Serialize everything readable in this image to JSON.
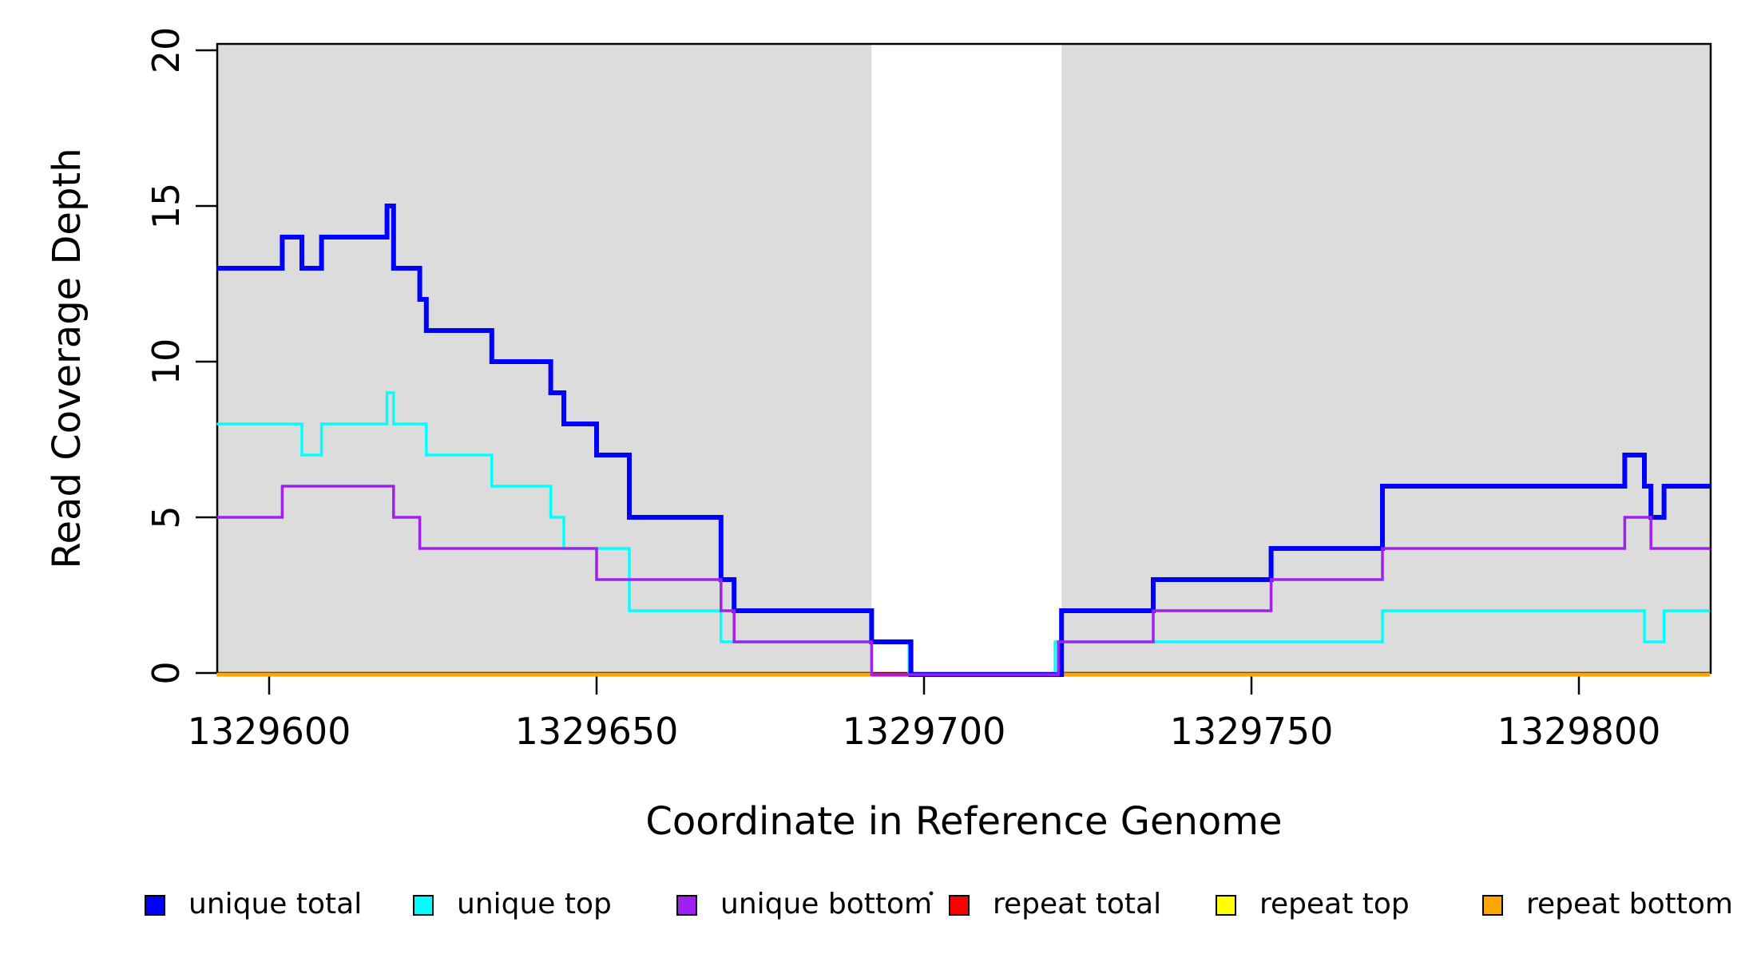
{
  "figure": {
    "background": "#ffffff",
    "plot_background": "#ffffff",
    "shade_color": "#DCDCDC",
    "box_color": "#000000"
  },
  "titles": {
    "x_axis": "Coordinate in Reference Genome",
    "y_axis": "Read Coverage Depth"
  },
  "legend": {
    "items": [
      {
        "label": "unique total",
        "color": "#0000FF"
      },
      {
        "label": "unique top",
        "color": "#00FFFF"
      },
      {
        "label": "unique bottom",
        "color": "#A020F0"
      },
      {
        "label": "repeat total",
        "color": "#FF0000"
      },
      {
        "label": "repeat top",
        "color": "#FFFF00"
      },
      {
        "label": "repeat bottom",
        "color": "#FFA500"
      }
    ]
  },
  "chart_data": {
    "type": "line",
    "step": true,
    "title": "",
    "xlabel": "Coordinate in Reference Genome",
    "ylabel": "Read Coverage Depth",
    "xlim": [
      1329592,
      1329820
    ],
    "ylim": [
      0,
      20
    ],
    "grid": false,
    "legend_position": "bottom",
    "x_ticks": [
      {
        "coord": 1329600,
        "label": "1329600"
      },
      {
        "coord": 1329650,
        "label": "1329650"
      },
      {
        "coord": 1329700,
        "label": "1329700"
      },
      {
        "coord": 1329750,
        "label": "1329750"
      },
      {
        "coord": 1329800,
        "label": "1329800"
      }
    ],
    "y_ticks": [
      {
        "value": 0,
        "label": "0"
      },
      {
        "value": 5,
        "label": "5"
      },
      {
        "value": 10,
        "label": "10"
      },
      {
        "value": 15,
        "label": "15"
      },
      {
        "value": 20,
        "label": "20"
      }
    ],
    "shaded_regions": [
      {
        "from": 1329592,
        "to": 1329692
      },
      {
        "from": 1329721,
        "to": 1329820
      }
    ],
    "series": [
      {
        "name": "repeat total",
        "color": "#FF0000",
        "width": 5,
        "segments": [
          {
            "points": [
              [
                1329592,
                0
              ]
            ],
            "end": 1329820
          }
        ]
      },
      {
        "name": "repeat top",
        "color": "#FFFF00",
        "width": 3,
        "segments": [
          {
            "points": [
              [
                1329592,
                0
              ]
            ],
            "end": 1329820
          }
        ]
      },
      {
        "name": "repeat bottom",
        "color": "#FFA500",
        "width": 5,
        "segments": [
          {
            "points": [
              [
                1329592,
                0
              ]
            ],
            "end": 1329692
          },
          {
            "points": [
              [
                1329721,
                0
              ]
            ],
            "end": 1329820
          }
        ]
      },
      {
        "name": "unique top",
        "color": "#00FFFF",
        "width": 3.5,
        "segments": [
          {
            "points": [
              [
                1329592,
                8
              ],
              [
                1329605,
                7
              ],
              [
                1329608,
                8
              ],
              [
                1329618,
                9
              ],
              [
                1329619,
                8
              ],
              [
                1329624,
                7
              ],
              [
                1329634,
                6
              ],
              [
                1329643,
                5
              ],
              [
                1329645,
                4
              ],
              [
                1329655,
                2
              ],
              [
                1329669,
                1
              ],
              [
                1329697.7,
                0
              ],
              [
                1329720,
                1
              ],
              [
                1329770,
                2
              ],
              [
                1329810,
                1
              ],
              [
                1329813,
                2
              ]
            ],
            "end": 1329820
          }
        ]
      },
      {
        "name": "unique total",
        "color": "#0000FF",
        "width": 6,
        "segments": [
          {
            "points": [
              [
                1329592,
                13
              ],
              [
                1329602,
                14
              ],
              [
                1329605,
                13
              ],
              [
                1329608,
                14
              ],
              [
                1329618,
                15
              ],
              [
                1329619,
                13
              ],
              [
                1329623,
                12
              ],
              [
                1329624,
                11
              ],
              [
                1329634,
                10
              ],
              [
                1329643,
                9
              ],
              [
                1329645,
                8
              ],
              [
                1329650,
                7
              ],
              [
                1329655,
                5
              ],
              [
                1329669,
                3
              ],
              [
                1329671,
                2
              ],
              [
                1329692,
                1
              ],
              [
                1329698,
                0
              ],
              [
                1329721,
                2
              ],
              [
                1329735,
                3
              ],
              [
                1329753,
                4
              ],
              [
                1329770,
                6
              ],
              [
                1329807,
                7
              ],
              [
                1329810,
                6
              ],
              [
                1329811,
                5
              ],
              [
                1329813,
                6
              ]
            ],
            "end": 1329820
          }
        ]
      },
      {
        "name": "unique bottom",
        "color": "#A020F0",
        "width": 3.5,
        "segments": [
          {
            "points": [
              [
                1329592,
                5
              ],
              [
                1329602,
                6
              ],
              [
                1329619,
                5
              ],
              [
                1329623,
                4
              ],
              [
                1329650,
                3
              ],
              [
                1329669,
                2
              ],
              [
                1329671,
                1
              ],
              [
                1329692,
                0
              ],
              [
                1329720.5,
                1
              ],
              [
                1329735,
                2
              ],
              [
                1329753,
                3
              ],
              [
                1329770,
                4
              ],
              [
                1329807,
                5
              ],
              [
                1329811,
                4
              ]
            ],
            "end": 1329820
          }
        ]
      }
    ]
  }
}
